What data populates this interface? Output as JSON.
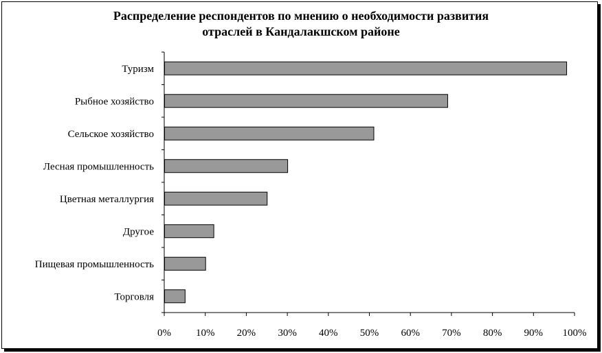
{
  "chart_data": {
    "type": "bar",
    "orientation": "horizontal",
    "title": "Распределение респондентов по мнению о необходимости развития отраслей в Кандалакшском районе",
    "title_lines": [
      "Распределение респондентов по мнению о необходимости развития",
      "отраслей в Кандалакшском районе"
    ],
    "categories": [
      "Туризм",
      "Рыбное хозяйство",
      "Сельское хозяйство",
      "Лесная промышленность",
      "Цветная металлургия",
      "Другое",
      "Пищевая промышленность",
      "Торговля"
    ],
    "values": [
      98,
      69,
      51,
      30,
      25,
      12,
      10,
      5
    ],
    "unit": "%",
    "xlim": [
      0,
      100
    ],
    "xticks": [
      "0%",
      "10%",
      "20%",
      "30%",
      "40%",
      "50%",
      "60%",
      "70%",
      "80%",
      "90%",
      "100%"
    ],
    "grid": false,
    "legend": "none",
    "bar_color": "#999999"
  }
}
